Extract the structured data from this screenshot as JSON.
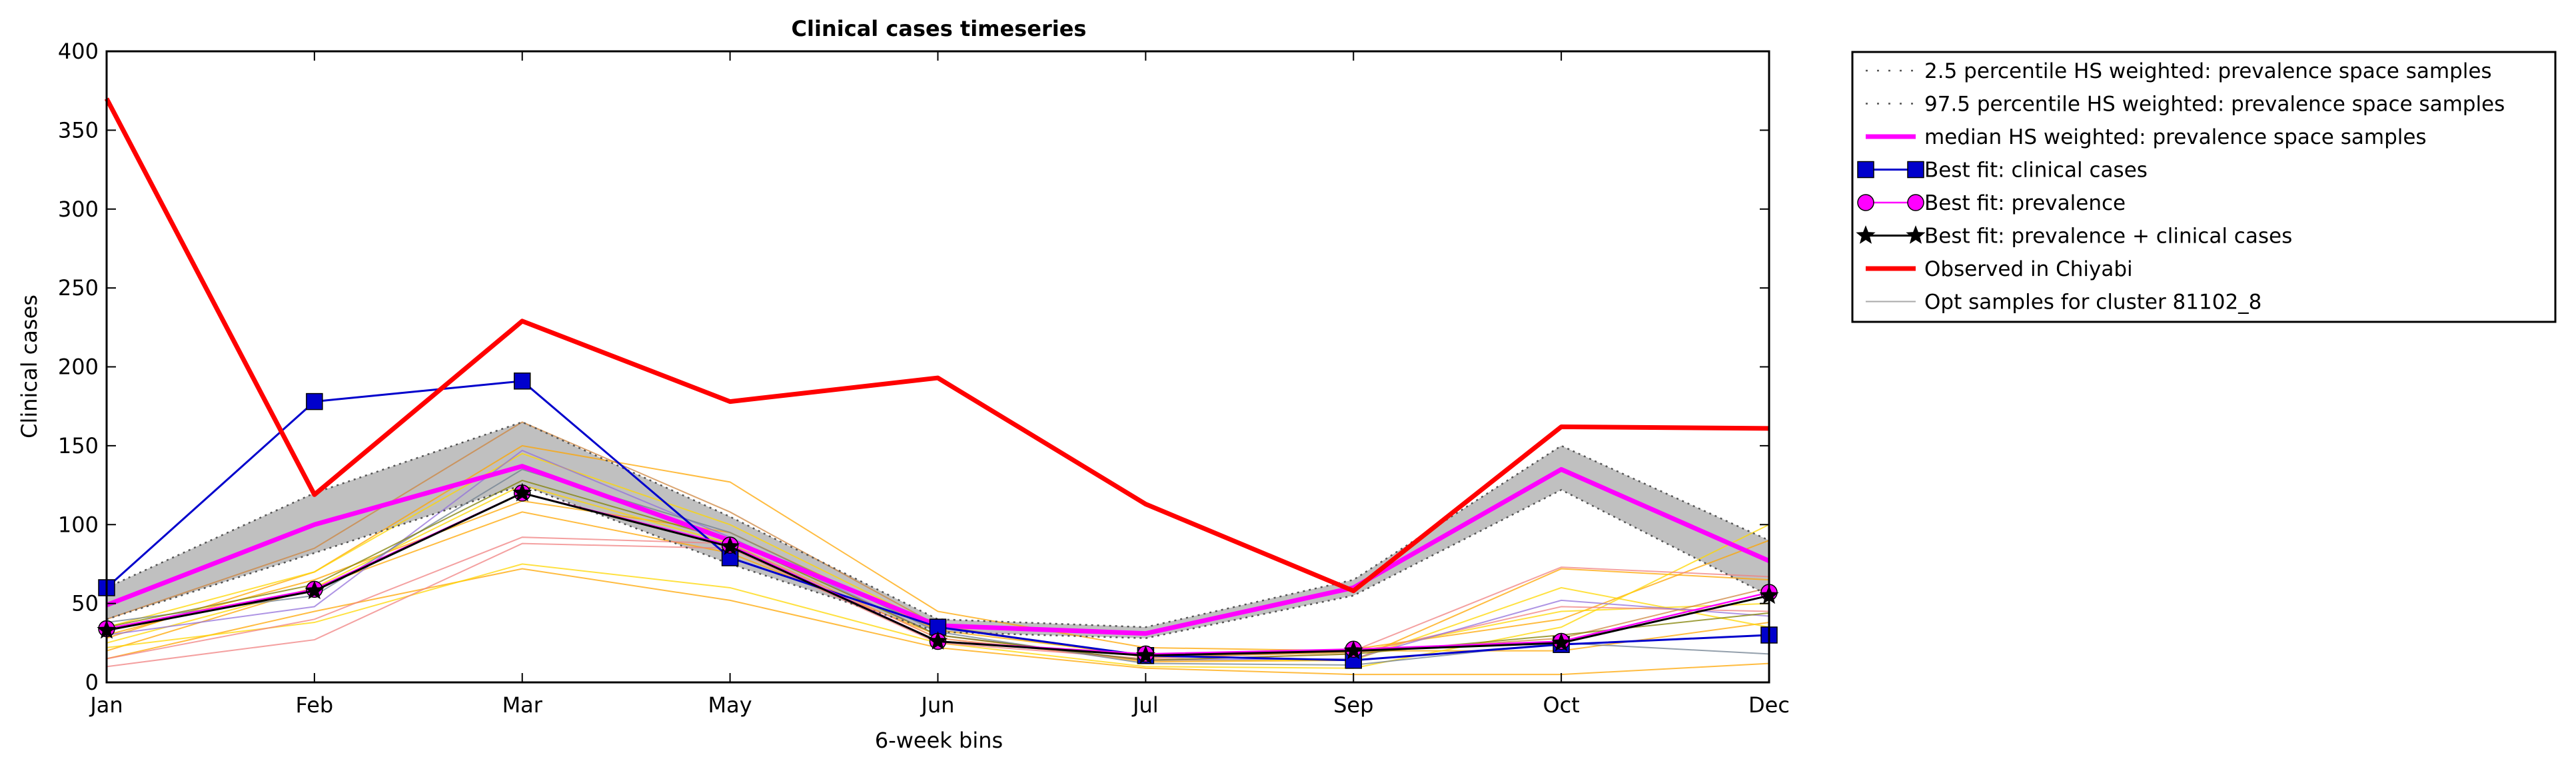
{
  "chart_data": {
    "type": "line",
    "title": "Clinical cases timeseries",
    "xlabel": "6-week bins",
    "ylabel": "Clinical cases",
    "categories": [
      "Jan",
      "Feb",
      "Mar",
      "May",
      "Jun",
      "Jul",
      "Sep",
      "Oct",
      "Dec"
    ],
    "ylim": [
      0,
      400
    ],
    "yticks": [
      0,
      50,
      100,
      150,
      200,
      250,
      300,
      350,
      400
    ],
    "grid": false,
    "legend_position": "outside-top-right",
    "band": {
      "lower_name": "2.5 percentile HS weighted: prevalence space samples",
      "upper_name": "97.5 percentile HS weighted: prevalence space samples",
      "lower": [
        40,
        82,
        125,
        75,
        32,
        28,
        55,
        122,
        55
      ],
      "upper": [
        60,
        120,
        165,
        105,
        40,
        35,
        65,
        150,
        90
      ],
      "fill_color": "#c0c0c0",
      "line_color": "#555555"
    },
    "series": [
      {
        "name": "median HS weighted: prevalence space samples",
        "color": "#ff00ff",
        "marker": "none",
        "values": [
          49,
          100,
          137,
          90,
          36,
          31,
          60,
          135,
          77
        ]
      },
      {
        "name": "Best fit: clinical cases",
        "color": "#0000cc",
        "marker": "square",
        "values": [
          60,
          178,
          191,
          79,
          35,
          17,
          14,
          24,
          30
        ]
      },
      {
        "name": "Best fit: prevalence",
        "color": "#ff00ff",
        "marker": "circle",
        "values": [
          34,
          59,
          120,
          87,
          26,
          18,
          21,
          26,
          57
        ]
      },
      {
        "name": "Best fit: prevalence + clinical cases",
        "color": "#000000",
        "marker": "star",
        "values": [
          33,
          58,
          120,
          86,
          26,
          17,
          20,
          25,
          55
        ]
      },
      {
        "name": "Observed in Chiyabi",
        "color": "#ff0000",
        "marker": "none",
        "values": [
          370,
          119,
          229,
          178,
          193,
          113,
          58,
          162,
          161
        ]
      }
    ],
    "samples": {
      "name": "Opt samples for cluster 81102_8",
      "legend_color": "#aaaaaa",
      "lines": [
        {
          "color": "#ffa500",
          "values": [
            15,
            45,
            72,
            52,
            22,
            9,
            5,
            5,
            12
          ]
        },
        {
          "color": "#ffa500",
          "values": [
            20,
            60,
            108,
            82,
            30,
            13,
            14,
            72,
            65
          ]
        },
        {
          "color": "#ffa500",
          "values": [
            28,
            70,
            150,
            127,
            45,
            22,
            20,
            20,
            38
          ]
        },
        {
          "color": "#ffa500",
          "values": [
            30,
            65,
            115,
            95,
            33,
            17,
            21,
            40,
            90
          ]
        },
        {
          "color": "#ffd700",
          "values": [
            25,
            60,
            125,
            88,
            28,
            14,
            14,
            60,
            35
          ]
        },
        {
          "color": "#ffd700",
          "values": [
            35,
            70,
            145,
            100,
            35,
            16,
            19,
            45,
            50
          ]
        },
        {
          "color": "#ffd700",
          "values": [
            22,
            38,
            75,
            60,
            25,
            10,
            9,
            35,
            100
          ]
        },
        {
          "color": "#f08080",
          "values": [
            10,
            27,
            88,
            85,
            25,
            15,
            20,
            73,
            67
          ]
        },
        {
          "color": "#f08080",
          "values": [
            15,
            40,
            92,
            88,
            28,
            14,
            18,
            48,
            45
          ]
        },
        {
          "color": "#cd853f",
          "values": [
            40,
            85,
            165,
            108,
            36,
            16,
            19,
            28,
            60
          ]
        },
        {
          "color": "#9370db",
          "values": [
            30,
            48,
            147,
            92,
            30,
            14,
            15,
            52,
            42
          ]
        },
        {
          "color": "#708090",
          "values": [
            38,
            55,
            135,
            95,
            32,
            12,
            11,
            25,
            18
          ]
        },
        {
          "color": "#808000",
          "values": [
            35,
            62,
            128,
            90,
            30,
            14,
            18,
            30,
            44
          ]
        }
      ]
    }
  }
}
